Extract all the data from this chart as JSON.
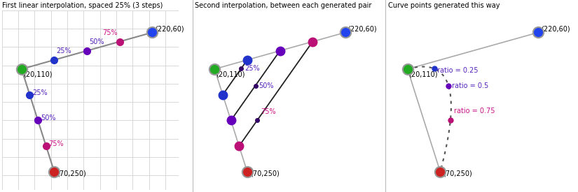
{
  "p0": [
    20,
    110
  ],
  "p1": [
    220,
    60
  ],
  "p2": [
    70,
    250
  ],
  "panel_titles": [
    "First linear interpolation, spaced 25% (3 steps)",
    "Second interpolation, between each generated pair",
    "Curve points generated this way"
  ],
  "bg_color": "#f0f0f0",
  "grid_color": "#d8d8d8",
  "col_green": "#22aa22",
  "col_blue": "#2244ee",
  "col_red": "#cc2222",
  "col_25": "#2233cc",
  "col_50": "#6600bb",
  "col_75_magenta": "#bb1177",
  "col_75_line": "#aa1166",
  "label_purple": "#5522bb",
  "label_magenta": "#cc1188",
  "line_gray": "#888888",
  "line_light": "#aaaaaa",
  "dot_dark": "#330066",
  "xlim": [
    -10,
    260
  ],
  "ylim_lo": 275,
  "ylim_hi": 30
}
